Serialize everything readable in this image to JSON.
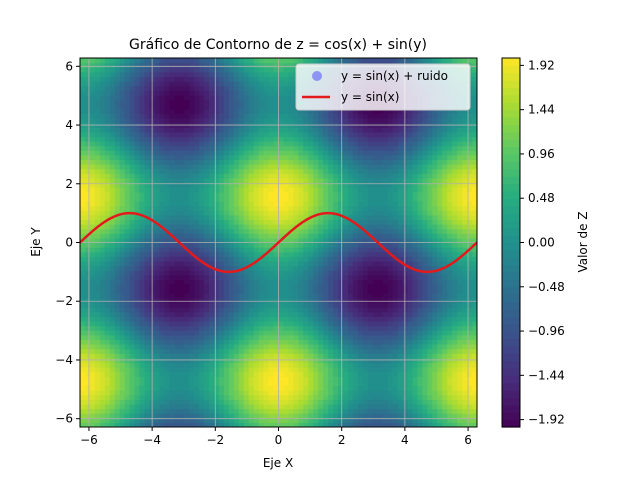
{
  "chart_data": {
    "type": "heatmap",
    "title": "Gráfico de Contorno de z = cos(x) + sin(y)",
    "xlabel": "Eje X",
    "ylabel": "Eje Y",
    "xlim": [
      -6.283,
      6.283
    ],
    "ylim": [
      -6.283,
      6.283
    ],
    "x_ticks": [
      -6,
      -4,
      -2,
      0,
      2,
      4,
      6
    ],
    "x_tick_labels": [
      "−6",
      "−4",
      "−2",
      "0",
      "2",
      "4",
      "6"
    ],
    "y_ticks": [
      -6,
      -4,
      -2,
      0,
      2,
      4,
      6
    ],
    "y_tick_labels": [
      "−6",
      "−4",
      "−2",
      "0",
      "2",
      "4",
      "6"
    ],
    "grid": true,
    "legend_position": "upper-right",
    "field": {
      "expression": "cos(x) + sin(y)",
      "zlim": [
        -2,
        2
      ],
      "colormap": "viridis"
    },
    "colorbar": {
      "label": "Valor de Z",
      "ticks": [
        1.92,
        1.44,
        0.96,
        0.48,
        0.0,
        -0.48,
        -0.96,
        -1.44,
        -1.92
      ],
      "tick_labels": [
        "1.92",
        "1.44",
        "0.96",
        "0.48",
        "0.00",
        "−0.48",
        "−0.96",
        "−1.44",
        "−1.92"
      ]
    },
    "series": [
      {
        "name": "y = sin(x) + ruido",
        "kind": "scatter",
        "color": "#5b5bf5"
      },
      {
        "name": "y = sin(x)",
        "kind": "line",
        "color": "#e31a1c",
        "function": "sin(x)"
      }
    ]
  }
}
